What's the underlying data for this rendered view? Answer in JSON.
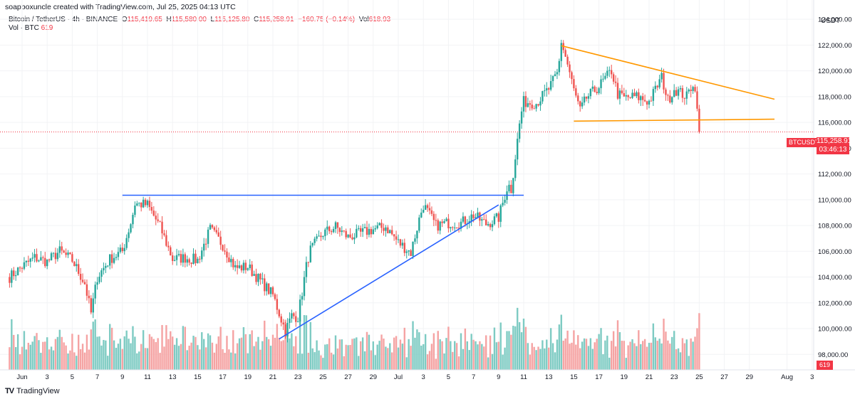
{
  "header": {
    "created_by": "soapboxuncle created with TradingView.com, Jul 25, 2025 04:13 UTC",
    "symbol_line": "Bitcoin / TetherUS · 4h · BINANCE",
    "o_label": "O",
    "o_value": "115,419.65",
    "h_label": "H",
    "h_value": "115,580.00",
    "l_label": "L",
    "l_value": "115,125.80",
    "c_label": "C",
    "c_value": "115,258.91",
    "change": "−160.75 (−0.14%)",
    "vol_label": "Vol",
    "vol_value": "618.93",
    "vol_series": "Vol · BTC",
    "vol_series_value": "619"
  },
  "price_axis": {
    "currency": "USDT"
  },
  "tags": {
    "symbol": "BTCUSDT",
    "last_price": "115,258.91",
    "countdown": "03:46:13",
    "volume": "619"
  },
  "footer": {
    "logo": "TV",
    "brand": "TradingView"
  },
  "colors": {
    "up": "#26a69a",
    "down": "#ef5350",
    "up_vol": "#7ecbc3",
    "down_vol": "#f5a3a3",
    "blue_line": "#2962ff",
    "orange_line": "#ff9800",
    "price_line": "#f23645"
  },
  "chart_data": {
    "type": "candlestick",
    "title": "Bitcoin / TetherUS · 4h · BINANCE",
    "y_ticks": [
      98000,
      100000,
      102000,
      104000,
      106000,
      108000,
      110000,
      112000,
      114000,
      116000,
      118000,
      120000,
      122000,
      124000
    ],
    "y_tick_labels": [
      "98,000.00",
      "100,000.00",
      "102,000.00",
      "104,000.00",
      "106,000.00",
      "108,000.00",
      "110,000.00",
      "112,000.00",
      "114,000.00",
      "116,000.00",
      "118,000.00",
      "120,000.00",
      "122,000.00",
      "124,000.00"
    ],
    "ylim": [
      96800,
      125500
    ],
    "x_ticks": [
      {
        "date": "2025-06-01",
        "label": "Jun"
      },
      {
        "date": "2025-06-03",
        "label": "3"
      },
      {
        "date": "2025-06-05",
        "label": "5"
      },
      {
        "date": "2025-06-07",
        "label": "7"
      },
      {
        "date": "2025-06-09",
        "label": "9"
      },
      {
        "date": "2025-06-11",
        "label": "11"
      },
      {
        "date": "2025-06-13",
        "label": "13"
      },
      {
        "date": "2025-06-15",
        "label": "15"
      },
      {
        "date": "2025-06-17",
        "label": "17"
      },
      {
        "date": "2025-06-19",
        "label": "19"
      },
      {
        "date": "2025-06-21",
        "label": "21"
      },
      {
        "date": "2025-06-23",
        "label": "23"
      },
      {
        "date": "2025-06-25",
        "label": "25"
      },
      {
        "date": "2025-06-27",
        "label": "27"
      },
      {
        "date": "2025-06-29",
        "label": "29"
      },
      {
        "date": "2025-07-01",
        "label": "Jul"
      },
      {
        "date": "2025-07-03",
        "label": "3"
      },
      {
        "date": "2025-07-05",
        "label": "5"
      },
      {
        "date": "2025-07-07",
        "label": "7"
      },
      {
        "date": "2025-07-09",
        "label": "9"
      },
      {
        "date": "2025-07-11",
        "label": "11"
      },
      {
        "date": "2025-07-13",
        "label": "13"
      },
      {
        "date": "2025-07-15",
        "label": "15"
      },
      {
        "date": "2025-07-17",
        "label": "17"
      },
      {
        "date": "2025-07-19",
        "label": "19"
      },
      {
        "date": "2025-07-21",
        "label": "21"
      },
      {
        "date": "2025-07-23",
        "label": "23"
      },
      {
        "date": "2025-07-25",
        "label": "25"
      },
      {
        "date": "2025-07-27",
        "label": "27"
      },
      {
        "date": "2025-07-29",
        "label": "29"
      },
      {
        "date": "2025-08-01",
        "label": "Aug"
      },
      {
        "date": "2025-08-03",
        "label": "3"
      }
    ],
    "last_price": 115258.91,
    "price_path": [
      [
        "2025-05-31",
        104000
      ],
      [
        "2025-06-01",
        104800
      ],
      [
        "2025-06-02",
        105500
      ],
      [
        "2025-06-03",
        105200
      ],
      [
        "2025-06-04",
        106000
      ],
      [
        "2025-06-05",
        105300
      ],
      [
        "2025-06-06",
        103500
      ],
      [
        "2025-06-06T12:00",
        101200
      ],
      [
        "2025-06-07",
        104000
      ],
      [
        "2025-06-08",
        105400
      ],
      [
        "2025-06-09",
        106000
      ],
      [
        "2025-06-09T18:00",
        108500
      ],
      [
        "2025-06-10",
        109700
      ],
      [
        "2025-06-11",
        109600
      ],
      [
        "2025-06-12",
        107900
      ],
      [
        "2025-06-13",
        105400
      ],
      [
        "2025-06-14",
        105500
      ],
      [
        "2025-06-15",
        105300
      ],
      [
        "2025-06-16",
        107700
      ],
      [
        "2025-06-17",
        106500
      ],
      [
        "2025-06-18",
        104700
      ],
      [
        "2025-06-19",
        104800
      ],
      [
        "2025-06-20",
        103700
      ],
      [
        "2025-06-21",
        102600
      ],
      [
        "2025-06-22",
        99800
      ],
      [
        "2025-06-22T12:00",
        101000
      ],
      [
        "2025-06-23",
        100900
      ],
      [
        "2025-06-23T18:00",
        105300
      ],
      [
        "2025-06-24",
        106100
      ],
      [
        "2025-06-25",
        107400
      ],
      [
        "2025-06-26",
        107900
      ],
      [
        "2025-06-27",
        107100
      ],
      [
        "2025-06-28",
        107400
      ],
      [
        "2025-06-29",
        107700
      ],
      [
        "2025-06-30",
        107900
      ],
      [
        "2025-07-01",
        106700
      ],
      [
        "2025-07-02",
        105900
      ],
      [
        "2025-07-02T18:00",
        108800
      ],
      [
        "2025-07-03",
        109600
      ],
      [
        "2025-07-04",
        108000
      ],
      [
        "2025-07-05",
        108200
      ],
      [
        "2025-07-06",
        108200
      ],
      [
        "2025-07-07",
        108800
      ],
      [
        "2025-07-08",
        108100
      ],
      [
        "2025-07-09",
        108600
      ],
      [
        "2025-07-09T18:00",
        111200
      ],
      [
        "2025-07-10",
        110800
      ],
      [
        "2025-07-10T18:00",
        116500
      ],
      [
        "2025-07-11",
        117600
      ],
      [
        "2025-07-12",
        117500
      ],
      [
        "2025-07-13",
        118600
      ],
      [
        "2025-07-13T18:00",
        119900
      ],
      [
        "2025-07-14",
        122300
      ],
      [
        "2025-07-14T12:00",
        120500
      ],
      [
        "2025-07-15",
        118500
      ],
      [
        "2025-07-15T12:00",
        116900
      ],
      [
        "2025-07-16",
        117900
      ],
      [
        "2025-07-17",
        118800
      ],
      [
        "2025-07-18",
        120000
      ],
      [
        "2025-07-18T12:00",
        118200
      ],
      [
        "2025-07-19",
        117900
      ],
      [
        "2025-07-20",
        118000
      ],
      [
        "2025-07-21",
        117600
      ],
      [
        "2025-07-22",
        119500
      ],
      [
        "2025-07-22T12:00",
        117700
      ],
      [
        "2025-07-23",
        118600
      ],
      [
        "2025-07-24",
        118000
      ],
      [
        "2025-07-24T12:00",
        119100
      ],
      [
        "2025-07-24T20:00",
        117500
      ],
      [
        "2025-07-25",
        115258.91
      ]
    ],
    "volume_range": [
      0,
      2200
    ],
    "trendlines": [
      {
        "name": "horizontal resistance",
        "color": "#2962ff",
        "start": [
          "2025-06-09",
          110350
        ],
        "end": [
          "2025-07-11",
          110350
        ]
      },
      {
        "name": "rising support",
        "color": "#2962ff",
        "start": [
          "2025-06-21T12:00",
          99200
        ],
        "end": [
          "2025-07-09",
          109600
        ]
      },
      {
        "name": "descending upper",
        "color": "#ff9800",
        "start": [
          "2025-07-14",
          121950
        ],
        "end": [
          "2025-07-31",
          117800
        ]
      },
      {
        "name": "flat lower",
        "color": "#ff9800",
        "start": [
          "2025-07-15",
          116100
        ],
        "end": [
          "2025-07-31",
          116250
        ]
      }
    ]
  }
}
